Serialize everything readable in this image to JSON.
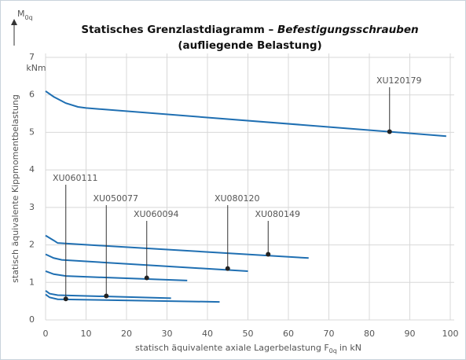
{
  "chart_data": {
    "type": "line",
    "title": {
      "text": "Statisches Grenzlastdiagramm – ",
      "italic": "Befestigungsschrauben"
    },
    "subtitle": "(aufliegende Belastung)",
    "ylabel": "statisch äquivalente Kippmomentbelastung",
    "yunit": "kNm",
    "ysymbol": {
      "text": "M",
      "sub": "0q"
    },
    "xlabel": {
      "text": "statisch äquivalente axiale Lagerbelastung F",
      "sub": "0q",
      "tail": "in kN"
    },
    "xlim": [
      0,
      100
    ],
    "xticks": [
      0,
      10,
      20,
      30,
      40,
      50,
      60,
      70,
      80,
      90,
      100
    ],
    "ylim": [
      0,
      7
    ],
    "yticks": [
      0,
      1,
      2,
      3,
      4,
      5,
      6,
      7
    ],
    "grid": true,
    "series": [
      {
        "name": "XU120179",
        "color": "#1f6fb2",
        "x": [
          0,
          2,
          5,
          8,
          10,
          99
        ],
        "values": [
          6.1,
          5.95,
          5.78,
          5.68,
          5.65,
          4.9
        ],
        "marker": {
          "x": 85,
          "y": 5.02
        }
      },
      {
        "name": "XU080149",
        "color": "#1f6fb2",
        "x": [
          0,
          2,
          3,
          65
        ],
        "values": [
          2.25,
          2.12,
          2.05,
          1.65
        ],
        "marker": {
          "x": 55,
          "y": 1.75
        }
      },
      {
        "name": "XU080120",
        "color": "#1f6fb2",
        "x": [
          0,
          2,
          4,
          50
        ],
        "values": [
          1.75,
          1.65,
          1.6,
          1.3
        ],
        "marker": {
          "x": 45,
          "y": 1.37
        }
      },
      {
        "name": "XU060094",
        "color": "#1f6fb2",
        "x": [
          0,
          2,
          5,
          35
        ],
        "values": [
          1.3,
          1.22,
          1.17,
          1.05
        ],
        "marker": {
          "x": 25,
          "y": 1.12
        }
      },
      {
        "name": "XU050077",
        "color": "#1f6fb2",
        "x": [
          0,
          1,
          3,
          31
        ],
        "values": [
          0.78,
          0.7,
          0.66,
          0.58
        ],
        "marker": {
          "x": 15,
          "y": 0.64
        }
      },
      {
        "name": "XU060111",
        "color": "#1f6fb2",
        "x": [
          0,
          1,
          3,
          43
        ],
        "values": [
          0.68,
          0.6,
          0.55,
          0.48
        ],
        "marker": {
          "x": 5,
          "y": 0.56
        }
      }
    ]
  }
}
